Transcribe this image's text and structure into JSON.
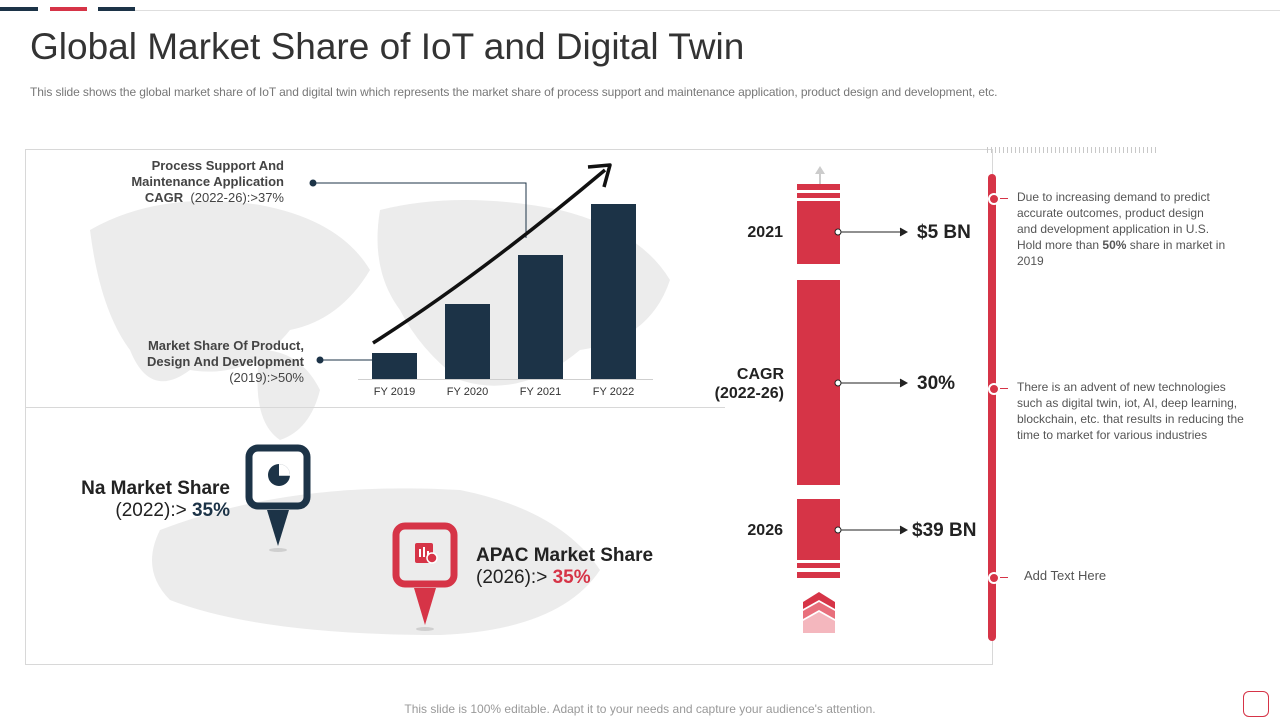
{
  "title": "Global Market Share of IoT and Digital Twin",
  "subtitle": "This slide shows the global market share of IoT and digital twin which represents the market share of process support and maintenance application, product design and development, etc.",
  "footer": "This slide is 100% editable. Adapt it to your needs and capture your audience's attention.",
  "colors": {
    "navy": "#1c3347",
    "red": "#d63447"
  },
  "callouts": {
    "process": {
      "line1": "Process  Support And",
      "line2": "Maintenance Application",
      "cagr_label": "CAGR",
      "cagr_value": "(2022-26):>37%"
    },
    "product": {
      "line1": "Market Share Of Product,",
      "line2": "Design And Development",
      "value": "(2019):>50%"
    }
  },
  "chart_data": {
    "type": "bar",
    "categories": [
      "FY 2019",
      "FY 2020",
      "FY 2021",
      "FY 2022"
    ],
    "values": [
      15,
      43,
      71,
      100
    ],
    "title": "",
    "xlabel": "",
    "ylabel": "",
    "ylim": [
      0,
      100
    ]
  },
  "na": {
    "label": "Na Market Share",
    "year": "(2022):>",
    "value": "35%",
    "icon": "pie-chart-icon"
  },
  "apac": {
    "label": "APAC Market Share",
    "year": "(2026):>",
    "value": "35%",
    "icon": "report-chart-icon"
  },
  "timeline": [
    {
      "year": "2021",
      "value": "$5 BN"
    },
    {
      "year_line1": "CAGR",
      "year_line2": "(2022-26)",
      "value": "30%"
    },
    {
      "year": "2026",
      "value": "$39 BN"
    }
  ],
  "notes": {
    "n1": {
      "pre": "Due to increasing demand to predict accurate outcomes, product design and development application in U.S. Hold more than ",
      "bold": "50%",
      "post": " share in market in 2019"
    },
    "n2": "There is an advent of new technologies such as digital twin, iot, AI, deep learning, blockchain, etc. that results in reducing the time to market for various  industries",
    "n3": "Add Text Here"
  }
}
